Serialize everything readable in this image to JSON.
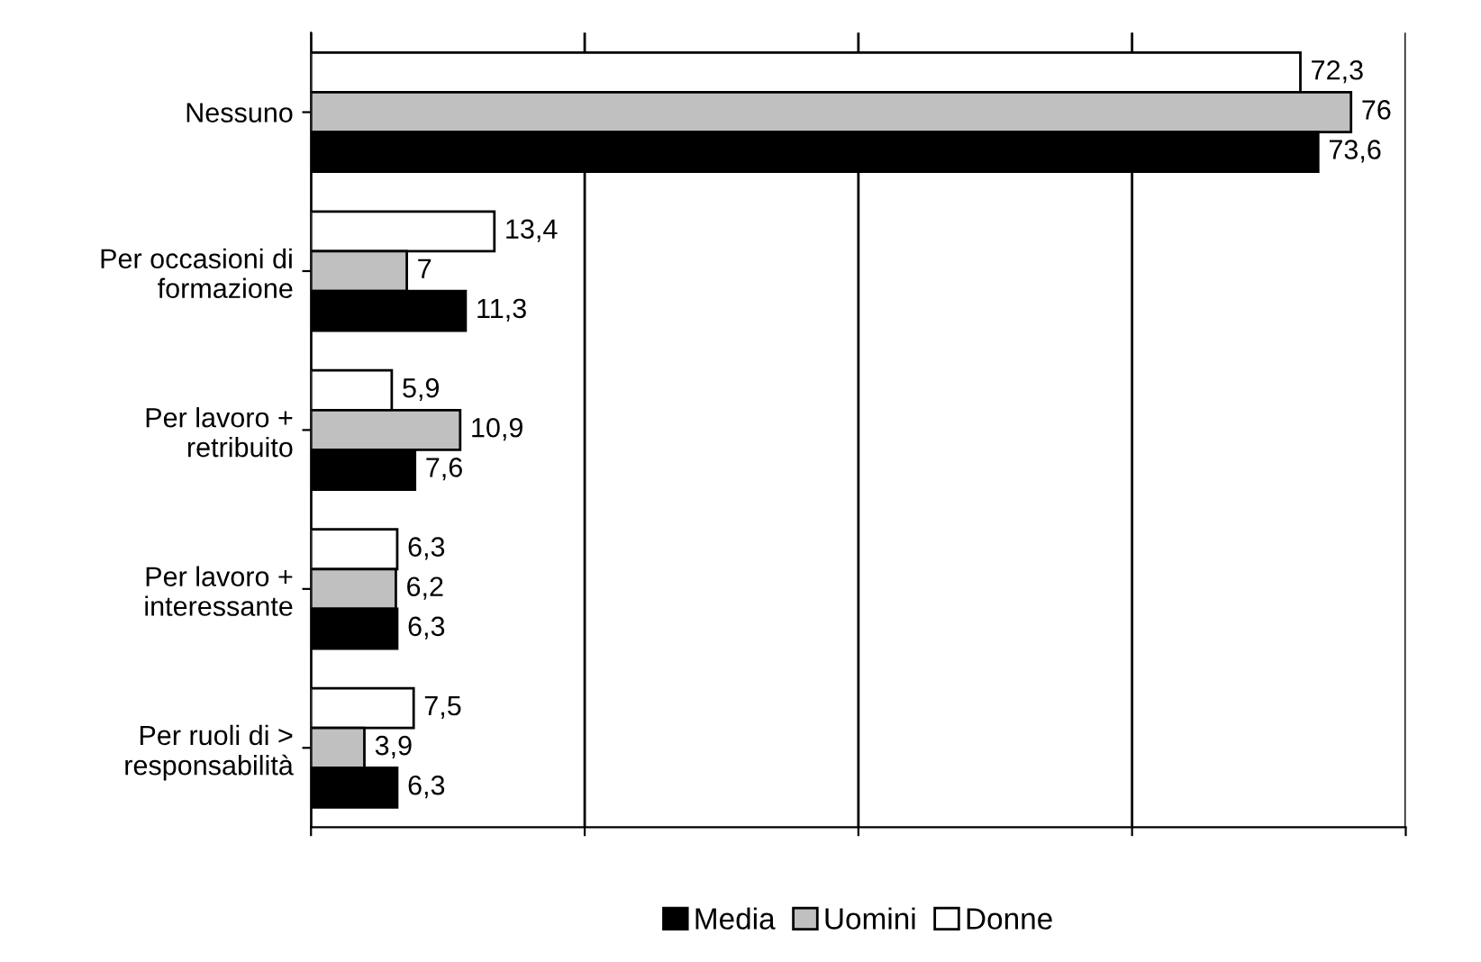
{
  "chart_data": {
    "type": "bar",
    "orientation": "horizontal",
    "categories": [
      "Nessuno",
      "Per occasioni di\nformazione",
      "Per lavoro +\nretribuito",
      "Per lavoro +\ninteressante",
      "Per ruoli di >\nresponsabilità"
    ],
    "series": [
      {
        "name": "Donne",
        "color": "#ffffff",
        "values": [
          72.3,
          13.4,
          5.9,
          6.3,
          7.5
        ],
        "value_labels": [
          "72,3",
          "13,4",
          "5,9",
          "6,3",
          "7,5"
        ]
      },
      {
        "name": "Uomini",
        "color": "#c0c0c0",
        "values": [
          76,
          7,
          10.9,
          6.2,
          3.9
        ],
        "value_labels": [
          "76",
          "7",
          "10,9",
          "6,2",
          "3,9"
        ]
      },
      {
        "name": "Media",
        "color": "#000000",
        "values": [
          73.6,
          11.3,
          7.6,
          6.3,
          6.3
        ],
        "value_labels": [
          "73,6",
          "11,3",
          "7,6",
          "6,3",
          "6,3"
        ]
      }
    ],
    "xlim": [
      0,
      80
    ],
    "xticks": [
      {
        "value": 0,
        "label": null
      },
      {
        "value": 20,
        "label": null
      },
      {
        "value": 40,
        "label": null
      },
      {
        "value": 60,
        "label": null
      },
      {
        "value": 80,
        "label": null
      }
    ],
    "tick_labels": "y",
    "grid": "x",
    "legend": "bottom"
  }
}
